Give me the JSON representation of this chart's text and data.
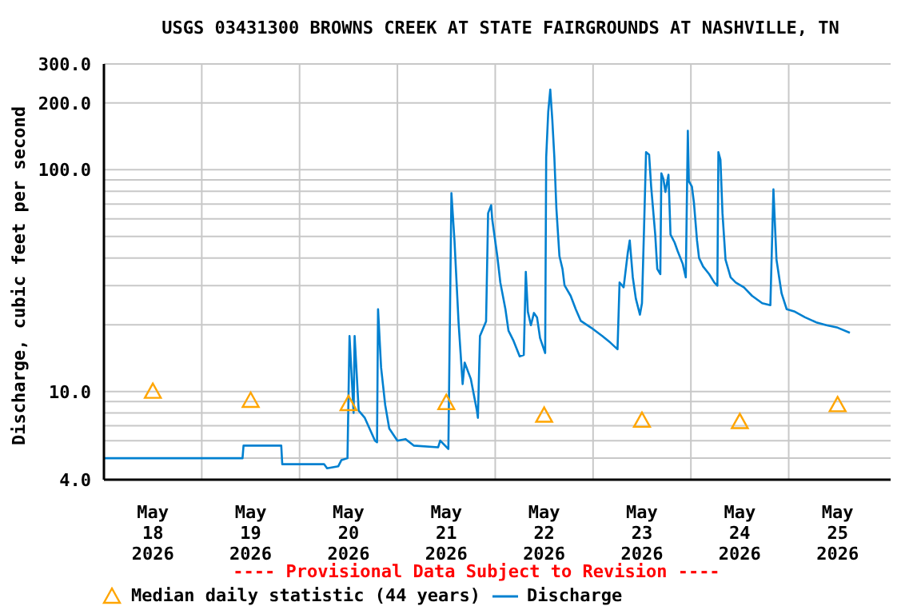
{
  "chart_data": {
    "type": "line",
    "title": "USGS 03431300 BROWNS CREEK AT STATE FAIRGROUNDS AT NASHVILLE, TN",
    "ylabel": "Discharge, cubic feet per second",
    "annotations": [
      "---- Provisional Data Subject to Revision ----"
    ],
    "log": true,
    "grid": true,
    "legend": "bottom",
    "xlim": [
      "2026-05-18T00:00",
      "2026-05-26T01:00"
    ],
    "xticks": [
      {
        "value": "2026-05-18T12:00",
        "label": "May\n18\n2026"
      },
      {
        "value": "2026-05-19T00:00",
        "label": null
      },
      {
        "value": "2026-05-19T12:00",
        "label": "May\n19\n2026"
      },
      {
        "value": "2026-05-20T00:00",
        "label": null
      },
      {
        "value": "2026-05-20T12:00",
        "label": "May\n20\n2026"
      },
      {
        "value": "2026-05-21T00:00",
        "label": null
      },
      {
        "value": "2026-05-21T12:00",
        "label": "May\n21\n2026"
      },
      {
        "value": "2026-05-22T00:00",
        "label": null
      },
      {
        "value": "2026-05-22T12:00",
        "label": "May\n22\n2026"
      },
      {
        "value": "2026-05-23T00:00",
        "label": null
      },
      {
        "value": "2026-05-23T12:00",
        "label": "May\n23\n2026"
      },
      {
        "value": "2026-05-24T00:00",
        "label": null
      },
      {
        "value": "2026-05-24T12:00",
        "label": "May\n24\n2026"
      },
      {
        "value": "2026-05-25T00:00",
        "label": null
      },
      {
        "value": "2026-05-25T12:00",
        "label": "May\n25\n2026"
      }
    ],
    "ylim": [
      4,
      300
    ],
    "yticks": [
      {
        "value": 4,
        "label": "4.0"
      },
      {
        "value": 5,
        "label": null
      },
      {
        "value": 6,
        "label": null
      },
      {
        "value": 7,
        "label": null
      },
      {
        "value": 8,
        "label": null
      },
      {
        "value": 9,
        "label": null
      },
      {
        "value": 10,
        "label": "10.0"
      },
      {
        "value": 20,
        "label": null
      },
      {
        "value": 30,
        "label": null
      },
      {
        "value": 40,
        "label": null
      },
      {
        "value": 50,
        "label": null
      },
      {
        "value": 60,
        "label": null
      },
      {
        "value": 70,
        "label": null
      },
      {
        "value": 80,
        "label": null
      },
      {
        "value": 90,
        "label": null
      },
      {
        "value": 100,
        "label": "100.0"
      },
      {
        "value": 200,
        "label": "200.0"
      },
      {
        "value": 300,
        "label": "300.0"
      }
    ],
    "series": [
      {
        "name": "Median daily statistic (44 years)",
        "type": "scatter",
        "marker": "triangle",
        "color": "#ffa500",
        "x": [
          "2026-05-18T12:00",
          "2026-05-19T12:00",
          "2026-05-20T12:00",
          "2026-05-21T12:00",
          "2026-05-22T12:00",
          "2026-05-23T12:00",
          "2026-05-24T12:00",
          "2026-05-25T12:00"
        ],
        "values": [
          10,
          9.1,
          8.8,
          8.9,
          7.8,
          7.4,
          7.3,
          8.7
        ]
      },
      {
        "name": "Discharge",
        "color": "#0080d0",
        "x": [
          "2026-05-18T00:00",
          "2026-05-19T10:00",
          "2026-05-19T10:15",
          "2026-05-19T19:30",
          "2026-05-19T19:45",
          "2026-05-20T06:00",
          "2026-05-20T06:45",
          "2026-05-20T09:30",
          "2026-05-20T10:15",
          "2026-05-20T11:45",
          "2026-05-20T12:15",
          "2026-05-20T13:15",
          "2026-05-20T13:30",
          "2026-05-20T14:30",
          "2026-05-20T16:00",
          "2026-05-20T18:30",
          "2026-05-20T19:00",
          "2026-05-20T19:15",
          "2026-05-20T20:00",
          "2026-05-20T21:00",
          "2026-05-20T22:00",
          "2026-05-21T00:00",
          "2026-05-21T02:00",
          "2026-05-21T04:00",
          "2026-05-21T10:00",
          "2026-05-21T10:30",
          "2026-05-21T12:30",
          "2026-05-21T13:15",
          "2026-05-21T14:00",
          "2026-05-21T15:00",
          "2026-05-21T16:00",
          "2026-05-21T16:30",
          "2026-05-21T18:00",
          "2026-05-21T19:30",
          "2026-05-21T19:45",
          "2026-05-21T20:15",
          "2026-05-21T21:45",
          "2026-05-21T22:15",
          "2026-05-21T23:00",
          "2026-05-21T23:15",
          "2026-05-22T00:30",
          "2026-05-22T01:15",
          "2026-05-22T02:30",
          "2026-05-22T03:15",
          "2026-05-22T04:30",
          "2026-05-22T06:00",
          "2026-05-22T07:00",
          "2026-05-22T07:30",
          "2026-05-22T08:00",
          "2026-05-22T08:45",
          "2026-05-22T09:30",
          "2026-05-22T10:15",
          "2026-05-22T11:00",
          "2026-05-22T12:15",
          "2026-05-22T12:30",
          "2026-05-22T13:00",
          "2026-05-22T13:30",
          "2026-05-22T14:00",
          "2026-05-22T14:30",
          "2026-05-22T15:00",
          "2026-05-22T15:45",
          "2026-05-22T16:30",
          "2026-05-22T17:00",
          "2026-05-22T18:30",
          "2026-05-22T19:45",
          "2026-05-22T21:00",
          "2026-05-22T23:30",
          "2026-05-23T02:15",
          "2026-05-23T04:15",
          "2026-05-23T06:00",
          "2026-05-23T06:30",
          "2026-05-23T07:30",
          "2026-05-23T08:30",
          "2026-05-23T09:00",
          "2026-05-23T09:45",
          "2026-05-23T10:30",
          "2026-05-23T11:30",
          "2026-05-23T12:00",
          "2026-05-23T12:30",
          "2026-05-23T13:00",
          "2026-05-23T13:45",
          "2026-05-23T14:15",
          "2026-05-23T15:15",
          "2026-05-23T15:45",
          "2026-05-23T16:30",
          "2026-05-23T16:45",
          "2026-05-23T17:15",
          "2026-05-23T17:45",
          "2026-05-23T18:30",
          "2026-05-23T19:00",
          "2026-05-23T20:00",
          "2026-05-23T20:45",
          "2026-05-23T22:00",
          "2026-05-23T22:45",
          "2026-05-23T23:15",
          "2026-05-23T23:30",
          "2026-05-24T00:15",
          "2026-05-24T00:45",
          "2026-05-24T01:30",
          "2026-05-24T02:00",
          "2026-05-24T03:00",
          "2026-05-24T04:30",
          "2026-05-24T05:45",
          "2026-05-24T06:30",
          "2026-05-24T06:45",
          "2026-05-24T07:15",
          "2026-05-24T07:45",
          "2026-05-24T08:30",
          "2026-05-24T09:45",
          "2026-05-24T11:00",
          "2026-05-24T13:00",
          "2026-05-24T15:00",
          "2026-05-24T17:30",
          "2026-05-24T19:30",
          "2026-05-24T20:15",
          "2026-05-24T20:30",
          "2026-05-24T21:00",
          "2026-05-24T22:15",
          "2026-05-24T23:30",
          "2026-05-25T01:30",
          "2026-05-25T04:00",
          "2026-05-25T06:45",
          "2026-05-25T09:15",
          "2026-05-25T12:00",
          "2026-05-25T15:00"
        ],
        "values": [
          5,
          5,
          5.7,
          5.7,
          4.7,
          4.7,
          4.5,
          4.6,
          4.9,
          5,
          17.8,
          8,
          17.8,
          8.2,
          7.6,
          6,
          5.9,
          23.5,
          12.8,
          8.7,
          6.8,
          6,
          6.1,
          5.7,
          5.6,
          6,
          5.5,
          78.5,
          48,
          20.5,
          10.8,
          13.5,
          11.4,
          8.2,
          7.6,
          17.8,
          20.7,
          63.7,
          69.2,
          60,
          40.8,
          31,
          23.5,
          18.8,
          16.9,
          14.4,
          14.6,
          34.6,
          22.9,
          19.9,
          22.6,
          21.6,
          17.4,
          14.9,
          114,
          182,
          230,
          168,
          114,
          67,
          40.8,
          35.7,
          30.1,
          27,
          23.5,
          20.8,
          19.4,
          17.8,
          16.6,
          15.5,
          31,
          29.5,
          42,
          48,
          32.7,
          26.2,
          22.2,
          25,
          53.8,
          120,
          117,
          84,
          51,
          35.7,
          33.8,
          96.4,
          91,
          79.4,
          95,
          51,
          47,
          43,
          37.6,
          32.7,
          150,
          88.7,
          84,
          71,
          48,
          40,
          36.6,
          33.8,
          31,
          30,
          120,
          111,
          63.7,
          39.3,
          32.7,
          31,
          29.5,
          27,
          25,
          24.5,
          81.6,
          63.7,
          39.3,
          27.7,
          23.5,
          22.9,
          21.6,
          20.5,
          19.9,
          19.4,
          18.4
        ]
      }
    ]
  }
}
